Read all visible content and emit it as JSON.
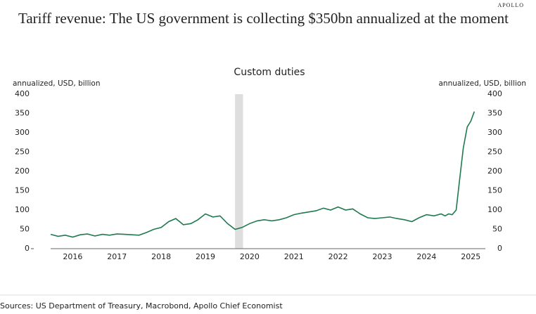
{
  "brand": "APOLLO",
  "headline": "Tariff revenue: The US government is collecting $350bn annualized at the moment",
  "source": "Sources: US Department of Treasury, Macrobond, Apollo Chief Economist",
  "chart_data": {
    "type": "line",
    "title": "Custom duties",
    "ylabel": "annualized, USD, billion",
    "y2label": "annualized, USD, billion",
    "x": [
      2016.0,
      2016.17,
      2016.33,
      2016.5,
      2016.67,
      2016.83,
      2017.0,
      2017.17,
      2017.33,
      2017.5,
      2017.67,
      2017.83,
      2018.0,
      2018.17,
      2018.33,
      2018.5,
      2018.67,
      2018.83,
      2019.0,
      2019.17,
      2019.33,
      2019.5,
      2019.67,
      2019.83,
      2020.0,
      2020.17,
      2020.33,
      2020.5,
      2020.67,
      2020.83,
      2021.0,
      2021.17,
      2021.33,
      2021.5,
      2021.67,
      2021.83,
      2022.0,
      2022.17,
      2022.33,
      2022.5,
      2022.67,
      2022.83,
      2023.0,
      2023.17,
      2023.33,
      2023.5,
      2023.67,
      2023.83,
      2024.0,
      2024.17,
      2024.33,
      2024.5,
      2024.67,
      2024.83,
      2024.92,
      2025.0,
      2025.08,
      2025.17,
      2025.25,
      2025.33,
      2025.42,
      2025.5,
      2025.58
    ],
    "series": [
      {
        "name": "Custom duties",
        "color": "#1f7a4f",
        "values": [
          37,
          32,
          35,
          30,
          36,
          38,
          33,
          37,
          35,
          38,
          37,
          36,
          35,
          42,
          50,
          55,
          70,
          78,
          62,
          65,
          75,
          90,
          82,
          85,
          65,
          50,
          55,
          65,
          72,
          75,
          72,
          75,
          80,
          88,
          92,
          95,
          98,
          105,
          100,
          108,
          100,
          103,
          90,
          80,
          78,
          80,
          82,
          78,
          75,
          70,
          80,
          88,
          85,
          90,
          85,
          90,
          88,
          100,
          180,
          260,
          315,
          330,
          355
        ]
      }
    ],
    "xlim": [
      2016.0,
      2025.83
    ],
    "xticks": [
      {
        "value": 2016.5,
        "label": "2016"
      },
      {
        "value": 2017.5,
        "label": "2017"
      },
      {
        "value": 2018.5,
        "label": "2018"
      },
      {
        "value": 2019.5,
        "label": "2019"
      },
      {
        "value": 2020.5,
        "label": "2020"
      },
      {
        "value": 2021.5,
        "label": "2021"
      },
      {
        "value": 2022.5,
        "label": "2022"
      },
      {
        "value": 2023.5,
        "label": "2023"
      },
      {
        "value": 2024.5,
        "label": "2024"
      },
      {
        "value": 2025.5,
        "label": "2025"
      }
    ],
    "ylim": [
      0,
      400
    ],
    "yticks": [
      0,
      50,
      100,
      150,
      200,
      250,
      300,
      350,
      400
    ],
    "y2lim": [
      0,
      400
    ],
    "y2ticks": [
      0,
      50,
      100,
      150,
      200,
      250,
      300,
      350,
      400
    ],
    "shaded_x": [
      2020.17,
      2020.35
    ],
    "shade_color": "#dedede"
  }
}
